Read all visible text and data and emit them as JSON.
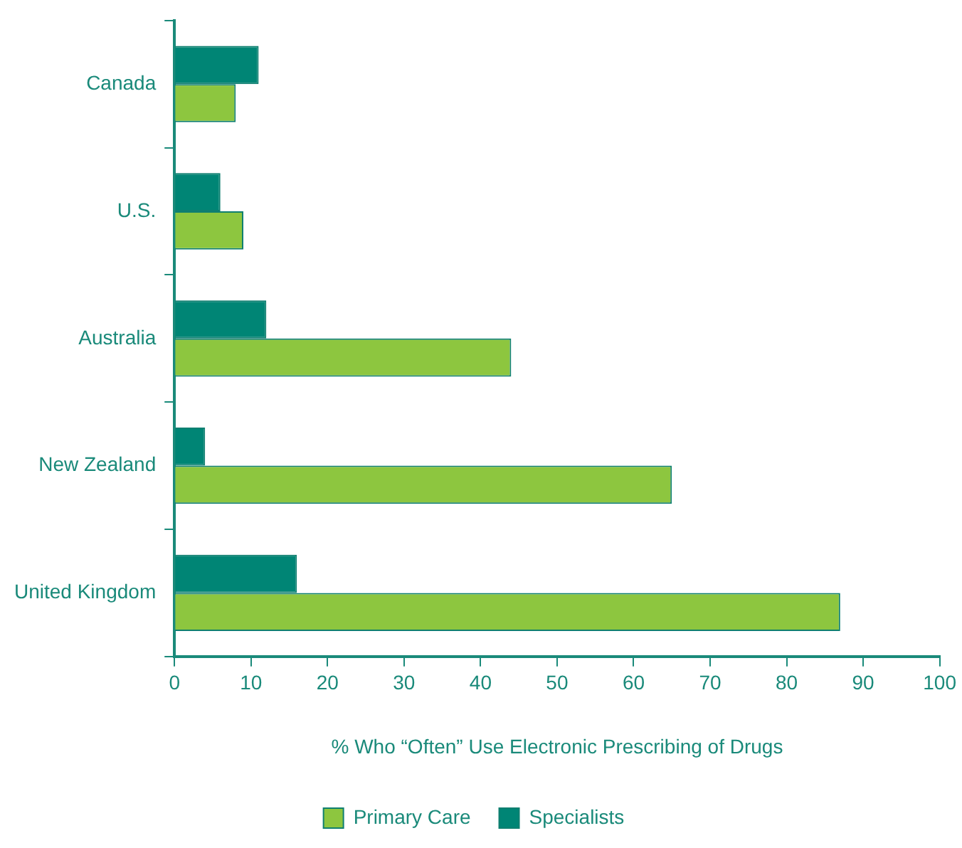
{
  "chart_data": {
    "type": "bar",
    "orientation": "horizontal",
    "xlabel": "% Who “Often” Use Electronic Prescribing of Drugs",
    "categories": [
      "Canada",
      "U.S.",
      "Australia",
      "New Zealand",
      "United Kingdom"
    ],
    "series": [
      {
        "name": "Primary Care",
        "color": "#8dc63f",
        "values": [
          8,
          9,
          44,
          65,
          87
        ]
      },
      {
        "name": "Specialists",
        "color": "#008575",
        "values": [
          11,
          6,
          12,
          4,
          16
        ]
      }
    ],
    "xlim": [
      0,
      100
    ],
    "xticks": [
      0,
      10,
      20,
      30,
      40,
      50,
      60,
      70,
      80,
      90,
      100
    ],
    "grid": false,
    "legend": "bottom"
  }
}
